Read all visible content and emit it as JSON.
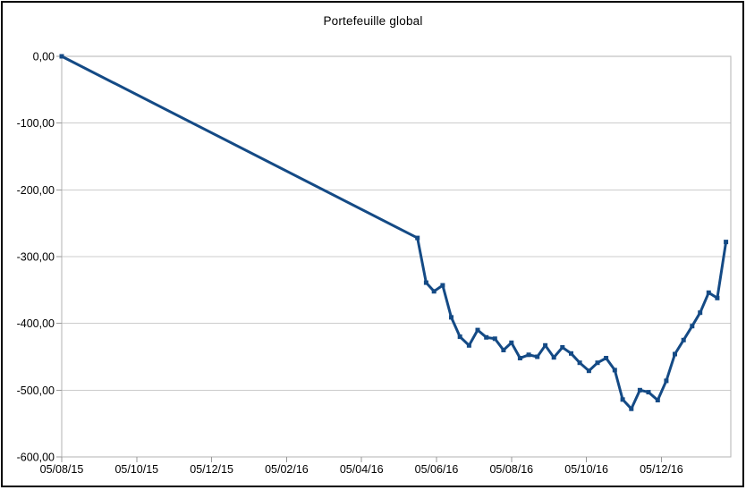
{
  "chart_data": {
    "type": "line",
    "title": "Portefeuille global",
    "xlabel": "",
    "ylabel": "",
    "ylim": [
      -600,
      0
    ],
    "grid": "horizontal",
    "legend": "none",
    "y_axis": {
      "values": [
        0,
        -100,
        -200,
        -300,
        -400,
        -500,
        -600
      ],
      "labels": [
        "0,00",
        "-100,00",
        "-200,00",
        "-300,00",
        "-400,00",
        "-500,00",
        "-600,00"
      ]
    },
    "x_axis": {
      "tick_labels": [
        "05/08/15",
        "05/10/15",
        "05/12/15",
        "05/02/16",
        "05/04/16",
        "05/06/16",
        "05/08/16",
        "05/10/16",
        "05/12/16"
      ],
      "tick_interval_months": 2
    },
    "colors": {
      "series": "#144a85",
      "grid": "#cccccc",
      "axis": "#b3b3b3",
      "tick": "#999999",
      "text": "#000000",
      "frame": "#000000",
      "background": "#ffffff"
    },
    "series": [
      {
        "name": "Portefeuille global",
        "marker": "square",
        "points": [
          {
            "date": "05/08/15",
            "value": 0.0
          },
          {
            "date": "20/05/16",
            "value": -272
          },
          {
            "date": "27/05/16",
            "value": -339
          },
          {
            "date": "03/06/16",
            "value": -352
          },
          {
            "date": "10/06/16",
            "value": -343
          },
          {
            "date": "17/06/16",
            "value": -391
          },
          {
            "date": "24/06/16",
            "value": -420
          },
          {
            "date": "01/07/16",
            "value": -433
          },
          {
            "date": "08/07/16",
            "value": -410
          },
          {
            "date": "15/07/16",
            "value": -421
          },
          {
            "date": "22/07/16",
            "value": -423
          },
          {
            "date": "29/07/16",
            "value": -440
          },
          {
            "date": "05/08/16",
            "value": -429
          },
          {
            "date": "12/08/16",
            "value": -452
          },
          {
            "date": "19/08/16",
            "value": -447
          },
          {
            "date": "26/08/16",
            "value": -450
          },
          {
            "date": "02/09/16",
            "value": -433
          },
          {
            "date": "09/09/16",
            "value": -451
          },
          {
            "date": "16/09/16",
            "value": -436
          },
          {
            "date": "23/09/16",
            "value": -445
          },
          {
            "date": "30/09/16",
            "value": -459
          },
          {
            "date": "07/10/16",
            "value": -471
          },
          {
            "date": "14/10/16",
            "value": -459
          },
          {
            "date": "21/10/16",
            "value": -452
          },
          {
            "date": "28/10/16",
            "value": -470
          },
          {
            "date": "04/11/16",
            "value": -514
          },
          {
            "date": "11/11/16",
            "value": -528
          },
          {
            "date": "18/11/16",
            "value": -500
          },
          {
            "date": "25/11/16",
            "value": -503
          },
          {
            "date": "02/12/16",
            "value": -515
          },
          {
            "date": "09/12/16",
            "value": -486
          },
          {
            "date": "16/12/16",
            "value": -446
          },
          {
            "date": "23/12/16",
            "value": -425
          },
          {
            "date": "30/12/16",
            "value": -404
          },
          {
            "date": "06/01/17",
            "value": -384
          },
          {
            "date": "13/01/17",
            "value": -354
          },
          {
            "date": "20/01/17",
            "value": -362
          },
          {
            "date": "27/01/17",
            "value": -278
          }
        ]
      }
    ]
  }
}
